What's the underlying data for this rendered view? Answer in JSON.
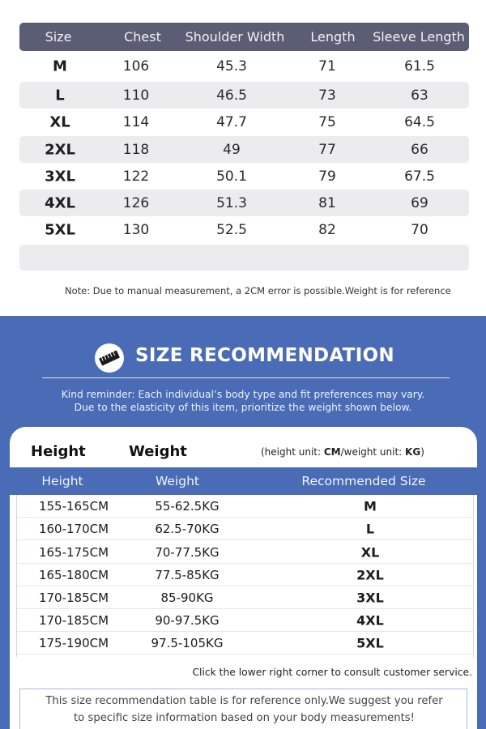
{
  "size_chart": {
    "headers": [
      "Size",
      "Chest",
      "Shoulder Width",
      "Length",
      "Sleeve Length"
    ],
    "rows": [
      {
        "size": "M",
        "chest": "106",
        "shoulder": "45.3",
        "length": "71",
        "sleeve": "61.5"
      },
      {
        "size": "L",
        "chest": "110",
        "shoulder": "46.5",
        "length": "73",
        "sleeve": "63"
      },
      {
        "size": "XL",
        "chest": "114",
        "shoulder": "47.7",
        "length": "75",
        "sleeve": "64.5"
      },
      {
        "size": "2XL",
        "chest": "118",
        "shoulder": "49",
        "length": "77",
        "sleeve": "66"
      },
      {
        "size": "3XL",
        "chest": "122",
        "shoulder": "50.1",
        "length": "79",
        "sleeve": "67.5"
      },
      {
        "size": "4XL",
        "chest": "126",
        "shoulder": "51.3",
        "length": "81",
        "sleeve": "69"
      },
      {
        "size": "5XL",
        "chest": "130",
        "shoulder": "52.5",
        "length": "82",
        "sleeve": "70"
      }
    ],
    "note": "Note: Due to manual measurement, a 2CM error is possible.Weight is for reference"
  },
  "recommendation": {
    "icon": "measuring-tape-icon",
    "title": "SIZE RECOMMENDATION",
    "reminder_line1": "Kind reminder: Each individual’s body type and fit preferences may vary.",
    "reminder_line2": "Due to the elasticity of this item, prioritize the weight shown below.",
    "card_height_label": "Height",
    "card_weight_label": "Weight",
    "units_prefix": "(height unit: ",
    "units_height": "CM",
    "units_middle": "/weight unit: ",
    "units_weight": "KG",
    "units_suffix": ")",
    "table_headers": [
      "Height",
      "Weight",
      "Recommended Size"
    ],
    "rows": [
      {
        "height": "155-165CM",
        "weight": "55-62.5KG",
        "size": "M"
      },
      {
        "height": "160-170CM",
        "weight": "62.5-70KG",
        "size": "L"
      },
      {
        "height": "165-175CM",
        "weight": "70-77.5KG",
        "size": "XL"
      },
      {
        "height": "165-180CM",
        "weight": "77.5-85KG",
        "size": "2XL"
      },
      {
        "height": "170-185CM",
        "weight": "85-90KG",
        "size": "3XL"
      },
      {
        "height": "170-185CM",
        "weight": "90-97.5KG",
        "size": "4XL"
      },
      {
        "height": "175-190CM",
        "weight": "97.5-105KG",
        "size": "5XL"
      }
    ],
    "consult": "Click the lower right corner to consult customer service.",
    "disclaimer_line1": "This size recommendation table is for reference only.We suggest you refer",
    "disclaimer_line2": "to specific size information based on your body measurements!"
  },
  "colors": {
    "chart_header_bg": "#5a5d73",
    "row_shade": "#ececee",
    "section_blue": "#4a6bb5"
  }
}
